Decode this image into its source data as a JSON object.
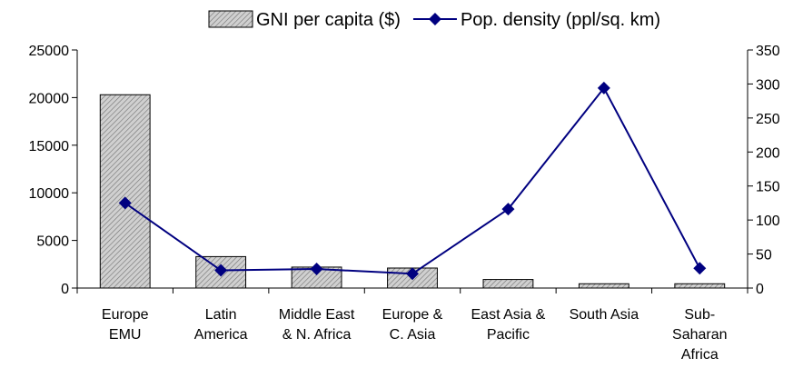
{
  "chart_data": {
    "type": "bar-line",
    "categories": [
      [
        "Europe",
        "EMU"
      ],
      [
        "Latin",
        "America"
      ],
      [
        "Middle East",
        "& N. Africa"
      ],
      [
        "Europe &",
        "C. Asia"
      ],
      [
        "East Asia &",
        "Pacific"
      ],
      [
        "South Asia"
      ],
      [
        "Sub-",
        "Saharan",
        "Africa"
      ]
    ],
    "series": [
      {
        "name": "GNI per capita ($)",
        "type": "bar",
        "color": "#c0c0c0",
        "values": [
          20300,
          3300,
          2200,
          2100,
          900,
          450,
          450
        ]
      },
      {
        "name": "Pop. density (ppl/sq. km)",
        "type": "line",
        "axis": "y2",
        "color": "#000080",
        "values": [
          125,
          26,
          28,
          21,
          116,
          294,
          29
        ]
      }
    ],
    "ylim": [
      0,
      25000
    ],
    "yticks": [
      0,
      5000,
      10000,
      15000,
      20000,
      25000
    ],
    "y2lim": [
      0,
      350
    ],
    "y2ticks": [
      0,
      50,
      100,
      150,
      200,
      250,
      300,
      350
    ],
    "grid": false,
    "legend": "top"
  }
}
